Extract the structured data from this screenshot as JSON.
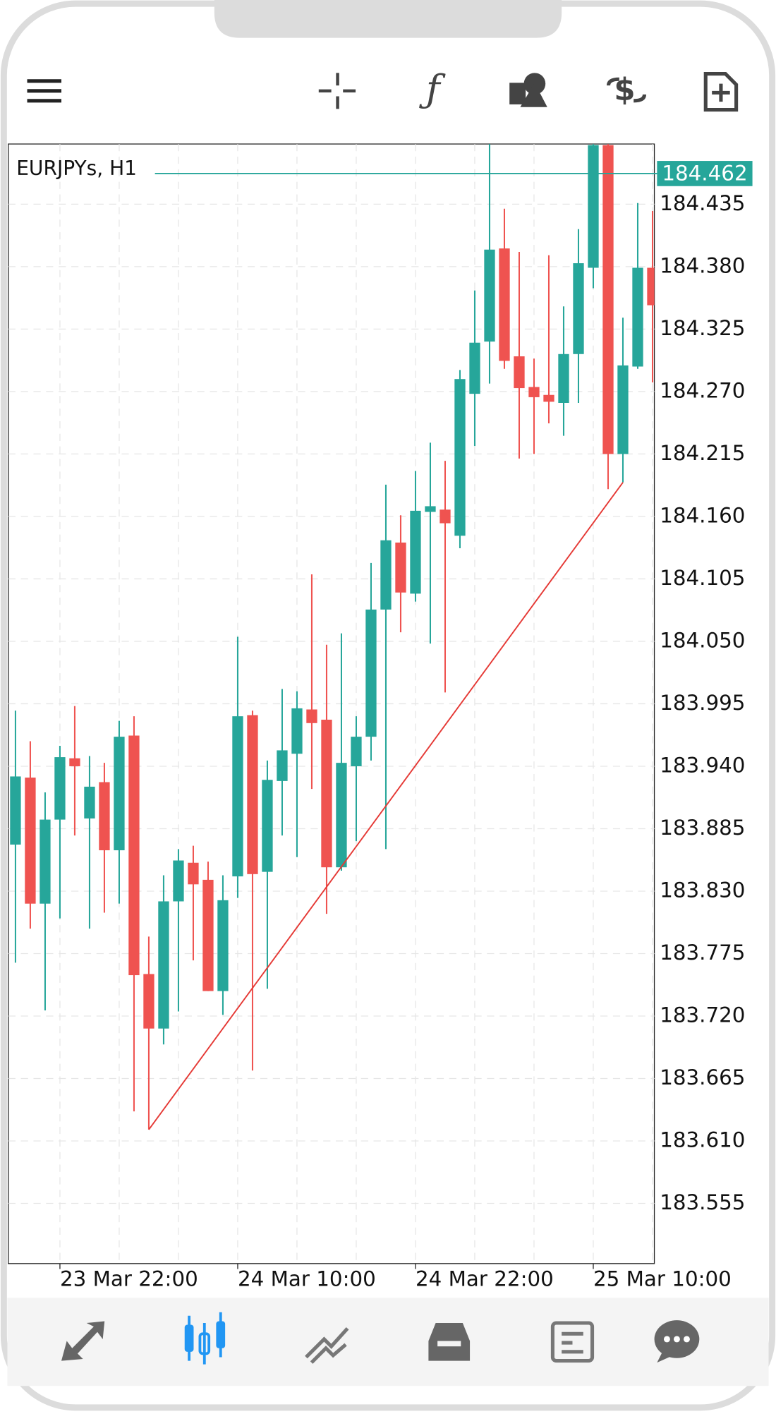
{
  "chart_data": {
    "type": "candlestick",
    "title": "EURJPYs, H1",
    "categories": [
      null,
      null,
      null,
      "23 Mar 22:00",
      null,
      null,
      null,
      null,
      null,
      null,
      null,
      null,
      null,
      null,
      null,
      "24 Mar 10:00",
      null,
      null,
      null,
      null,
      null,
      null,
      null,
      null,
      null,
      null,
      null,
      "24 Mar 22:00",
      null,
      null,
      null,
      null,
      null,
      null,
      null,
      null,
      null,
      null,
      null,
      "25 Mar 10:00",
      null,
      null,
      null,
      null
    ],
    "open": [
      183.871,
      183.93,
      183.819,
      183.893,
      183.947,
      183.894,
      183.926,
      183.866,
      183.967,
      183.757,
      183.709,
      183.821,
      183.855,
      183.84,
      183.742,
      183.843,
      183.985,
      183.847,
      183.927,
      183.951,
      183.99,
      183.981,
      183.851,
      183.94,
      183.966,
      184.078,
      184.137,
      184.092,
      184.164,
      184.166,
      184.143,
      184.268,
      184.314,
      184.396,
      184.301,
      184.274,
      184.267,
      184.26,
      184.303,
      184.379,
      184.487,
      184.215,
      184.292,
      184.379
    ],
    "high": [
      183.989,
      183.962,
      183.917,
      183.958,
      183.993,
      183.949,
      183.943,
      183.98,
      183.984,
      183.79,
      183.844,
      183.867,
      183.87,
      183.856,
      183.844,
      184.054,
      183.989,
      183.945,
      184.008,
      184.006,
      184.109,
      184.047,
      184.057,
      183.984,
      184.119,
      184.188,
      184.161,
      184.2,
      184.225,
      184.209,
      184.289,
      184.359,
      184.5,
      184.431,
      184.393,
      184.299,
      184.39,
      184.345,
      184.413,
      184.5,
      184.5,
      184.335,
      184.436,
      184.429
    ],
    "low": [
      183.767,
      183.797,
      183.725,
      183.806,
      183.879,
      183.797,
      183.811,
      183.819,
      183.636,
      183.62,
      183.695,
      183.724,
      183.769,
      183.742,
      183.721,
      183.824,
      183.672,
      183.744,
      183.879,
      183.86,
      183.92,
      183.81,
      183.848,
      183.874,
      183.945,
      183.867,
      184.058,
      184.085,
      184.048,
      184.005,
      184.132,
      184.222,
      184.277,
      184.29,
      184.211,
      184.215,
      184.242,
      184.231,
      184.26,
      184.361,
      184.184,
      184.19,
      184.29,
      184.278
    ],
    "close": [
      183.931,
      183.819,
      183.893,
      183.948,
      183.94,
      183.922,
      183.866,
      183.966,
      183.756,
      183.709,
      183.821,
      183.857,
      183.836,
      183.742,
      183.822,
      183.984,
      183.845,
      183.928,
      183.954,
      183.991,
      183.978,
      183.851,
      183.943,
      183.966,
      184.078,
      184.139,
      184.093,
      184.165,
      184.169,
      184.154,
      184.281,
      184.313,
      184.395,
      184.297,
      184.273,
      184.265,
      184.261,
      184.303,
      184.383,
      184.487,
      184.215,
      184.293,
      184.379,
      184.346
    ],
    "up_color": "#26a69a",
    "down_color": "#ef5350",
    "ylim": [
      183.502,
      184.488
    ],
    "yticks": [
      184.435,
      {
        "value": 184.38,
        "label": "184.380"
      },
      184.325,
      {
        "value": 184.27,
        "label": "184.270"
      },
      184.215,
      {
        "value": 184.16,
        "label": "184.160"
      },
      184.105,
      {
        "value": 184.05,
        "label": "184.050"
      },
      183.995,
      {
        "value": 183.94,
        "label": "183.940"
      },
      183.885,
      {
        "value": 183.83,
        "label": "183.830"
      },
      183.775,
      {
        "value": 183.72,
        "label": "183.720"
      },
      183.665,
      {
        "value": 183.61,
        "label": "183.610"
      },
      183.555
    ],
    "last_price": 184.462,
    "last_price_color": "#26a69a",
    "trend_line": {
      "points": [
        [
          9,
          183.62
        ],
        [
          41,
          184.19
        ]
      ],
      "color": "#e53935"
    },
    "grid": true
  }
}
